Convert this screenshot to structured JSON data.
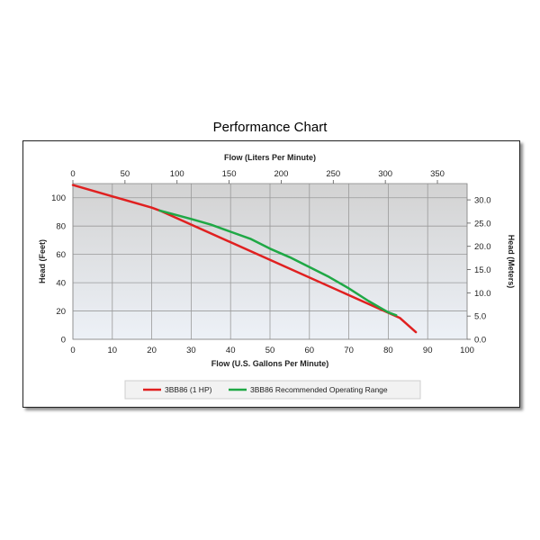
{
  "title": "Performance Chart",
  "chart_data": {
    "type": "line",
    "title": "Performance Chart",
    "xlabel": "Flow (U.S. Gallons Per Minute)",
    "xlim": [
      0,
      100
    ],
    "xticks": [
      "0",
      "10",
      "20",
      "30",
      "40",
      "50",
      "60",
      "70",
      "80",
      "90",
      "100"
    ],
    "x2label": "Flow (Liters Per Minute)",
    "x2lim": [
      0,
      378.5
    ],
    "x2ticks": [
      "0",
      "50",
      "100",
      "150",
      "200",
      "250",
      "300",
      "350"
    ],
    "ylabel": "Head (Feet)",
    "ylim": [
      0,
      110
    ],
    "yticks": [
      "0",
      "20",
      "40",
      "60",
      "80",
      "100"
    ],
    "y2label": "Head (Meters)",
    "y2lim": [
      0,
      33.5
    ],
    "y2ticks": [
      "0.0",
      "5.0",
      "10.0",
      "15.0",
      "20.0",
      "25.0",
      "30.0"
    ],
    "grid": true,
    "legend": "bottom",
    "series": [
      {
        "name": "3BB86 (1 HP)",
        "color": "#e02020",
        "x": [
          0,
          10,
          20,
          22,
          83,
          87
        ],
        "y": [
          109,
          101,
          93,
          91,
          15,
          5
        ]
      },
      {
        "name": "3BB86 Recommended Operating Range",
        "color": "#1fa845",
        "x": [
          22,
          30,
          35,
          40,
          45,
          50,
          55,
          60,
          65,
          70,
          75,
          80,
          82
        ],
        "y": [
          91,
          85,
          81,
          76,
          71,
          64,
          58,
          51,
          44,
          36,
          27,
          19,
          17
        ]
      }
    ]
  }
}
